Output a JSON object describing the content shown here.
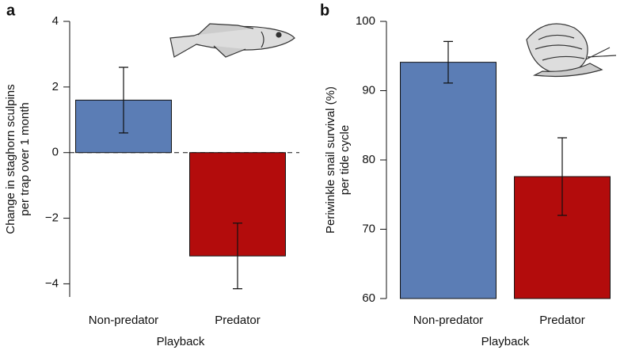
{
  "chart_data": [
    {
      "type": "bar",
      "panel_label": "a",
      "ylabel": [
        "Change in staghorn sculpins",
        "per trap over 1 month"
      ],
      "xlabel": "Playback",
      "categories": [
        "Non-predator",
        "Predator"
      ],
      "values": [
        1.6,
        -3.15
      ],
      "errors": [
        1.0,
        1.0
      ],
      "colors": [
        "#5b7db5",
        "#b30c0c"
      ],
      "ylim": [
        -4.4,
        4
      ],
      "yticks": [
        {
          "value": -4,
          "label": "−4"
        },
        {
          "value": -2,
          "label": "−2"
        },
        0,
        2,
        4
      ],
      "zero_line": true
    },
    {
      "type": "bar",
      "panel_label": "b",
      "ylabel": [
        "Periwinkle snail survival (%)",
        "per tide cycle"
      ],
      "xlabel": "Playback",
      "categories": [
        "Non-predator",
        "Predator"
      ],
      "values": [
        94.1,
        77.6
      ],
      "errors": [
        3.0,
        5.6
      ],
      "colors": [
        "#5b7db5",
        "#b30c0c"
      ],
      "ylim": [
        60,
        100
      ],
      "yticks": [
        60,
        70,
        80,
        90,
        100
      ],
      "zero_line": false
    }
  ]
}
